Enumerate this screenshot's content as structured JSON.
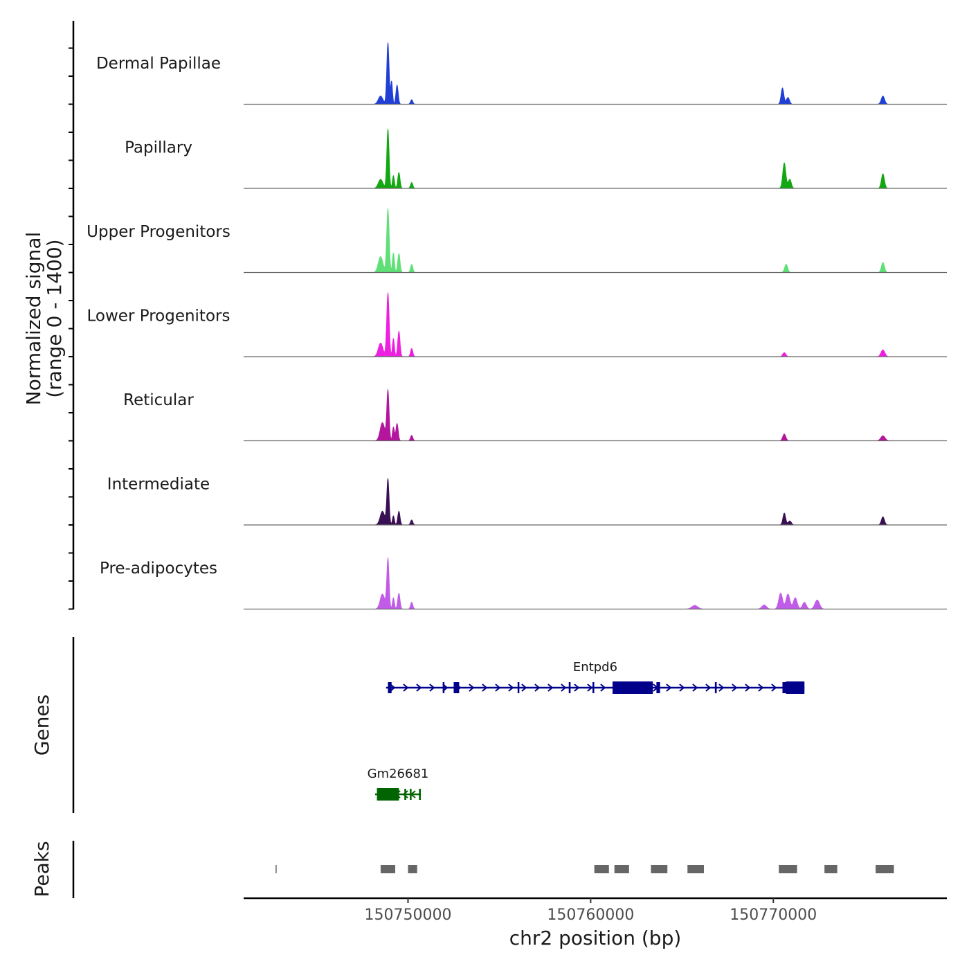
{
  "chart_data": {
    "type": "area",
    "y_axis_title_line1": "Normalized signal",
    "y_axis_title_line2": "(range 0 - 1400)",
    "y_range": [
      0,
      1400
    ],
    "x_axis_title": "chr2 position (bp)",
    "x_range": [
      150741000,
      150779500
    ],
    "x_ticks": [
      150750000,
      150760000,
      150770000
    ],
    "x_tick_labels": [
      "150750000",
      "150760000",
      "150770000"
    ],
    "tracks": [
      {
        "name": "Dermal Papillae",
        "color": "#1f3fd6",
        "peaks": [
          {
            "center": 150748500,
            "height": 180,
            "width": 300
          },
          {
            "center": 150748900,
            "height": 1350,
            "width": 150
          },
          {
            "center": 150749100,
            "height": 500,
            "width": 120
          },
          {
            "center": 150749400,
            "height": 420,
            "width": 150
          },
          {
            "center": 150750200,
            "height": 100,
            "width": 150
          },
          {
            "center": 150770500,
            "height": 360,
            "width": 180
          },
          {
            "center": 150770800,
            "height": 150,
            "width": 200
          },
          {
            "center": 150776000,
            "height": 180,
            "width": 220
          }
        ]
      },
      {
        "name": "Papillary",
        "color": "#13a813",
        "peaks": [
          {
            "center": 150748500,
            "height": 200,
            "width": 300
          },
          {
            "center": 150748900,
            "height": 1300,
            "width": 150
          },
          {
            "center": 150749200,
            "height": 280,
            "width": 130
          },
          {
            "center": 150749500,
            "height": 350,
            "width": 150
          },
          {
            "center": 150750200,
            "height": 130,
            "width": 150
          },
          {
            "center": 150770600,
            "height": 560,
            "width": 200
          },
          {
            "center": 150770900,
            "height": 200,
            "width": 200
          },
          {
            "center": 150776000,
            "height": 320,
            "width": 200
          }
        ]
      },
      {
        "name": "Upper Progenitors",
        "color": "#5fe077",
        "peaks": [
          {
            "center": 150748500,
            "height": 350,
            "width": 300
          },
          {
            "center": 150748900,
            "height": 1400,
            "width": 160
          },
          {
            "center": 150749200,
            "height": 430,
            "width": 130
          },
          {
            "center": 150749500,
            "height": 420,
            "width": 150
          },
          {
            "center": 150750200,
            "height": 180,
            "width": 150
          },
          {
            "center": 150770700,
            "height": 180,
            "width": 200
          },
          {
            "center": 150776000,
            "height": 220,
            "width": 200
          }
        ]
      },
      {
        "name": "Lower Progenitors",
        "color": "#ee1fe0",
        "peaks": [
          {
            "center": 150748500,
            "height": 300,
            "width": 300
          },
          {
            "center": 150748900,
            "height": 1400,
            "width": 160
          },
          {
            "center": 150749200,
            "height": 400,
            "width": 130
          },
          {
            "center": 150749500,
            "height": 560,
            "width": 150
          },
          {
            "center": 150750200,
            "height": 180,
            "width": 150
          },
          {
            "center": 150770600,
            "height": 90,
            "width": 200
          },
          {
            "center": 150776000,
            "height": 150,
            "width": 250
          }
        ]
      },
      {
        "name": "Reticular",
        "color": "#b3159c",
        "peaks": [
          {
            "center": 150748600,
            "height": 400,
            "width": 300
          },
          {
            "center": 150748900,
            "height": 1100,
            "width": 150
          },
          {
            "center": 150749200,
            "height": 300,
            "width": 130
          },
          {
            "center": 150749400,
            "height": 380,
            "width": 150
          },
          {
            "center": 150750200,
            "height": 120,
            "width": 150
          },
          {
            "center": 150770600,
            "height": 150,
            "width": 200
          },
          {
            "center": 150776000,
            "height": 110,
            "width": 280
          }
        ]
      },
      {
        "name": "Intermediate",
        "color": "#3a1055",
        "peaks": [
          {
            "center": 150748600,
            "height": 300,
            "width": 300
          },
          {
            "center": 150748900,
            "height": 1000,
            "width": 150
          },
          {
            "center": 150749200,
            "height": 200,
            "width": 130
          },
          {
            "center": 150749500,
            "height": 300,
            "width": 150
          },
          {
            "center": 150750200,
            "height": 110,
            "width": 150
          },
          {
            "center": 150770600,
            "height": 260,
            "width": 180
          },
          {
            "center": 150770900,
            "height": 90,
            "width": 200
          },
          {
            "center": 150776000,
            "height": 180,
            "width": 200
          }
        ]
      },
      {
        "name": "Pre-adipocytes",
        "color": "#c15ce8",
        "peaks": [
          {
            "center": 150748600,
            "height": 330,
            "width": 300
          },
          {
            "center": 150748900,
            "height": 1100,
            "width": 150
          },
          {
            "center": 150749200,
            "height": 250,
            "width": 130
          },
          {
            "center": 150749500,
            "height": 350,
            "width": 150
          },
          {
            "center": 150750200,
            "height": 150,
            "width": 150
          },
          {
            "center": 150765700,
            "height": 80,
            "width": 400
          },
          {
            "center": 150769500,
            "height": 90,
            "width": 300
          },
          {
            "center": 150770400,
            "height": 350,
            "width": 250
          },
          {
            "center": 150770800,
            "height": 330,
            "width": 250
          },
          {
            "center": 150771200,
            "height": 250,
            "width": 250
          },
          {
            "center": 150771700,
            "height": 150,
            "width": 250
          },
          {
            "center": 150772400,
            "height": 200,
            "width": 300
          }
        ]
      }
    ],
    "genes_label": "Genes",
    "genes": [
      {
        "name": "Entpd6",
        "strand": "+",
        "color": "#00008b",
        "start": 150748800,
        "end": 150771700,
        "exons": [
          [
            150748900,
            150749100
          ],
          [
            150751900,
            150751950
          ],
          [
            150752500,
            150752800
          ],
          [
            150756000,
            150756050
          ],
          [
            150758800,
            150758900
          ],
          [
            150760100,
            150760150
          ],
          [
            150761200,
            150762500
          ],
          [
            150762500,
            150763400
          ],
          [
            150763600,
            150763800
          ],
          [
            150766800,
            150766900
          ],
          [
            150770500,
            150771700
          ]
        ],
        "thick": [
          [
            150761200,
            150763400
          ],
          [
            150770700,
            150771700
          ]
        ]
      },
      {
        "name": "Gm26681",
        "strand": "-",
        "color": "#006400",
        "start": 150748200,
        "end": 150750700,
        "exons": [
          [
            150748300,
            150749500
          ],
          [
            150749800,
            150749900
          ],
          [
            150750100,
            150750150
          ],
          [
            150750600,
            150750700
          ]
        ],
        "thick": [
          [
            150748300,
            150749500
          ]
        ]
      }
    ],
    "peaks_label": "Peaks",
    "peak_regions": [
      [
        150742750,
        150742800
      ],
      [
        150748500,
        150749300
      ],
      [
        150750000,
        150750500
      ],
      [
        150760200,
        150761000
      ],
      [
        150761300,
        150762100
      ],
      [
        150763300,
        150764200
      ],
      [
        150765300,
        150766200
      ],
      [
        150770300,
        150771300
      ],
      [
        150772800,
        150773500
      ],
      [
        150775600,
        150776600
      ]
    ],
    "peak_color": "#666666"
  }
}
